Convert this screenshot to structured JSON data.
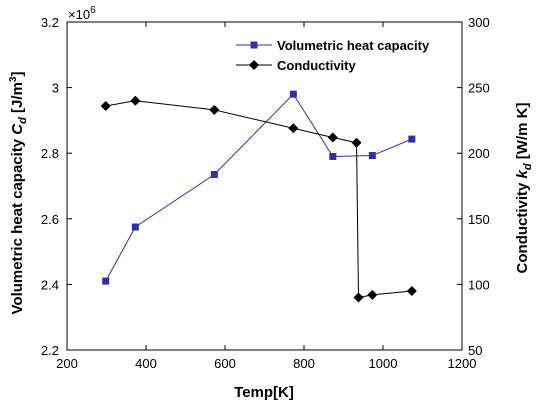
{
  "chart_data": {
    "type": "line",
    "xlabel": "Temp[K]",
    "ylabel_left": [
      "Volumetric heat capacity  ",
      "C",
      "d",
      " [J/m",
      "3",
      "]"
    ],
    "ylabel_right": [
      "Conductivity  ",
      "k",
      "d",
      " [W/m K]"
    ],
    "left_axis_multiplier": [
      "×10",
      "6"
    ],
    "xlim": [
      200,
      1200
    ],
    "ylim_left": [
      2.2,
      3.2
    ],
    "ylim_right": [
      50,
      300
    ],
    "x_ticks": [
      "200",
      "400",
      "600",
      "800",
      "1000",
      "1200"
    ],
    "y_left_ticks": [
      "2.2",
      "2.4",
      "2.6",
      "2.8",
      "3",
      "3.2"
    ],
    "y_right_ticks": [
      "50",
      "100",
      "150",
      "200",
      "250",
      "300"
    ],
    "legend_position": "top-right",
    "colors": {
      "heat_capacity": "#3030a0",
      "conductivity": "#000000"
    },
    "series": [
      {
        "name": "Volumetric heat capacity",
        "axis": "left",
        "marker": "square",
        "x": [
          298,
          373,
          573,
          773,
          873,
          973,
          1073
        ],
        "y": [
          2.41,
          2.575,
          2.735,
          2.98,
          2.79,
          2.793,
          2.843
        ]
      },
      {
        "name": "Conductivity",
        "axis": "right",
        "marker": "diamond",
        "x": [
          298,
          373,
          573,
          773,
          873,
          933,
          938,
          973,
          1073
        ],
        "y": [
          236,
          240,
          233,
          219,
          212,
          208,
          90,
          92,
          95
        ]
      }
    ]
  }
}
